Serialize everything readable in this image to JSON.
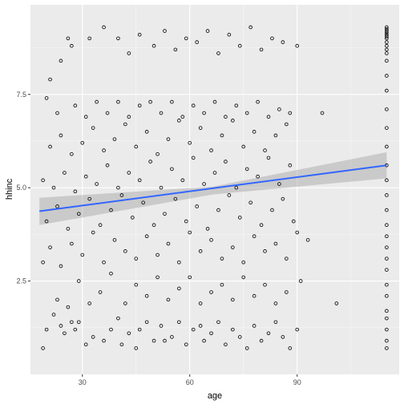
{
  "chart_data": {
    "type": "scatter",
    "title": "",
    "xlabel": "age",
    "ylabel": "hhinc",
    "xlim": [
      15.5,
      118.5
    ],
    "ylim": [
      0.0,
      9.9
    ],
    "x_ticks": [
      30,
      60,
      90
    ],
    "x_tick_labels": [
      "30",
      "60",
      "90"
    ],
    "y_ticks": [
      2.5,
      5.0,
      7.5
    ],
    "y_tick_labels": [
      "2.5",
      "5.0",
      "7.5"
    ],
    "grid": true,
    "legend": "none",
    "points": [
      [
        19,
        0.7
      ],
      [
        20,
        1.2
      ],
      [
        22,
        1.6
      ],
      [
        24,
        1.3
      ],
      [
        25,
        1.1
      ],
      [
        27,
        1.4
      ],
      [
        28,
        1.2
      ],
      [
        29,
        1.4
      ],
      [
        31,
        0.8
      ],
      [
        33,
        1.0
      ],
      [
        36,
        0.9
      ],
      [
        38,
        1.2
      ],
      [
        40,
        1.5
      ],
      [
        41,
        0.8
      ],
      [
        43,
        1.1
      ],
      [
        45,
        0.7
      ],
      [
        46,
        1.2
      ],
      [
        48,
        1.4
      ],
      [
        50,
        0.9
      ],
      [
        52,
        1.3
      ],
      [
        53,
        0.9
      ],
      [
        55,
        1.0
      ],
      [
        57,
        1.4
      ],
      [
        59,
        0.8
      ],
      [
        61,
        1.2
      ],
      [
        63,
        1.3
      ],
      [
        64,
        0.9
      ],
      [
        66,
        1.1
      ],
      [
        68,
        1.4
      ],
      [
        70,
        0.8
      ],
      [
        72,
        1.2
      ],
      [
        74,
        1.0
      ],
      [
        76,
        0.7
      ],
      [
        78,
        1.3
      ],
      [
        80,
        0.9
      ],
      [
        82,
        1.1
      ],
      [
        84,
        1.4
      ],
      [
        86,
        1.0
      ],
      [
        88,
        0.7
      ],
      [
        90,
        1.2
      ],
      [
        23,
        2.0
      ],
      [
        26,
        1.8
      ],
      [
        29,
        2.5
      ],
      [
        32,
        1.9
      ],
      [
        35,
        2.2
      ],
      [
        38,
        2.7
      ],
      [
        42,
        1.9
      ],
      [
        45,
        2.4
      ],
      [
        48,
        2.1
      ],
      [
        51,
        2.6
      ],
      [
        54,
        2.0
      ],
      [
        57,
        2.3
      ],
      [
        60,
        2.6
      ],
      [
        63,
        1.9
      ],
      [
        66,
        2.2
      ],
      [
        69,
        2.4
      ],
      [
        72,
        2.0
      ],
      [
        75,
        2.6
      ],
      [
        78,
        2.1
      ],
      [
        81,
        2.4
      ],
      [
        84,
        1.9
      ],
      [
        87,
        2.2
      ],
      [
        91,
        2.5
      ],
      [
        101,
        1.9
      ],
      [
        19,
        3.0
      ],
      [
        21,
        3.4
      ],
      [
        24,
        2.9
      ],
      [
        27,
        3.5
      ],
      [
        30,
        3.2
      ],
      [
        33,
        3.8
      ],
      [
        36,
        3.0
      ],
      [
        39,
        3.6
      ],
      [
        42,
        3.3
      ],
      [
        45,
        3.1
      ],
      [
        48,
        3.7
      ],
      [
        51,
        3.2
      ],
      [
        54,
        3.5
      ],
      [
        57,
        3.0
      ],
      [
        60,
        3.8
      ],
      [
        63,
        3.3
      ],
      [
        66,
        3.6
      ],
      [
        69,
        3.1
      ],
      [
        72,
        3.4
      ],
      [
        75,
        3.0
      ],
      [
        78,
        3.7
      ],
      [
        81,
        3.3
      ],
      [
        84,
        3.5
      ],
      [
        87,
        3.1
      ],
      [
        90,
        3.8
      ],
      [
        93,
        3.6
      ],
      [
        20,
        4.1
      ],
      [
        23,
        4.5
      ],
      [
        26,
        3.9
      ],
      [
        29,
        4.3
      ],
      [
        32,
        4.7
      ],
      [
        35,
        4.0
      ],
      [
        38,
        4.4
      ],
      [
        41,
        4.8
      ],
      [
        44,
        4.2
      ],
      [
        47,
        4.6
      ],
      [
        50,
        4.0
      ],
      [
        53,
        4.3
      ],
      [
        56,
        4.7
      ],
      [
        59,
        4.1
      ],
      [
        62,
        4.5
      ],
      [
        65,
        3.9
      ],
      [
        68,
        4.4
      ],
      [
        71,
        4.8
      ],
      [
        74,
        4.2
      ],
      [
        77,
        4.6
      ],
      [
        80,
        4.0
      ],
      [
        83,
        4.4
      ],
      [
        86,
        4.7
      ],
      [
        89,
        4.1
      ],
      [
        19,
        5.2
      ],
      [
        22,
        5.0
      ],
      [
        25,
        5.4
      ],
      [
        28,
        4.9
      ],
      [
        31,
        5.3
      ],
      [
        34,
        5.1
      ],
      [
        37,
        5.6
      ],
      [
        40,
        5.0
      ],
      [
        43,
        5.4
      ],
      [
        46,
        5.2
      ],
      [
        49,
        5.7
      ],
      [
        52,
        5.0
      ],
      [
        55,
        5.5
      ],
      [
        58,
        5.2
      ],
      [
        61,
        5.8
      ],
      [
        64,
        5.1
      ],
      [
        67,
        5.4
      ],
      [
        70,
        5.7
      ],
      [
        73,
        5.0
      ],
      [
        76,
        5.5
      ],
      [
        79,
        5.3
      ],
      [
        82,
        5.8
      ],
      [
        85,
        5.1
      ],
      [
        88,
        5.6
      ],
      [
        21,
        6.1
      ],
      [
        24,
        6.4
      ],
      [
        27,
        5.9
      ],
      [
        30,
        6.2
      ],
      [
        33,
        6.6
      ],
      [
        36,
        6.0
      ],
      [
        39,
        6.3
      ],
      [
        42,
        6.7
      ],
      [
        45,
        6.1
      ],
      [
        48,
        6.5
      ],
      [
        51,
        5.9
      ],
      [
        54,
        6.3
      ],
      [
        57,
        6.8
      ],
      [
        60,
        6.2
      ],
      [
        63,
        6.6
      ],
      [
        66,
        6.0
      ],
      [
        69,
        6.4
      ],
      [
        72,
        6.8
      ],
      [
        75,
        6.1
      ],
      [
        78,
        6.5
      ],
      [
        81,
        6.0
      ],
      [
        84,
        6.4
      ],
      [
        87,
        6.7
      ],
      [
        20,
        7.4
      ],
      [
        23,
        7.0
      ],
      [
        28,
        7.2
      ],
      [
        31,
        6.9
      ],
      [
        34,
        7.3
      ],
      [
        37,
        7.0
      ],
      [
        40,
        7.3
      ],
      [
        43,
        6.9
      ],
      [
        46,
        7.2
      ],
      [
        49,
        7.3
      ],
      [
        52,
        7.0
      ],
      [
        55,
        7.3
      ],
      [
        58,
        6.9
      ],
      [
        61,
        7.2
      ],
      [
        64,
        7.0
      ],
      [
        67,
        7.3
      ],
      [
        70,
        6.9
      ],
      [
        73,
        7.2
      ],
      [
        76,
        7.0
      ],
      [
        79,
        7.3
      ],
      [
        82,
        6.9
      ],
      [
        85,
        7.1
      ],
      [
        88,
        7.0
      ],
      [
        97,
        7.0
      ],
      [
        21,
        7.9
      ],
      [
        24,
        8.4
      ],
      [
        27,
        8.8
      ],
      [
        26,
        9.0
      ],
      [
        32,
        9.0
      ],
      [
        36,
        9.3
      ],
      [
        40,
        9.0
      ],
      [
        43,
        8.6
      ],
      [
        46,
        9.1
      ],
      [
        50,
        8.8
      ],
      [
        53,
        9.2
      ],
      [
        56,
        8.7
      ],
      [
        59,
        9.0
      ],
      [
        62,
        8.9
      ],
      [
        65,
        9.2
      ],
      [
        68,
        8.6
      ],
      [
        71,
        9.1
      ],
      [
        74,
        8.8
      ],
      [
        77,
        9.3
      ],
      [
        80,
        8.7
      ],
      [
        83,
        9.0
      ],
      [
        86,
        8.9
      ],
      [
        90,
        8.8
      ]
    ],
    "dense_column": {
      "x": 115,
      "y": [
        0.7,
        0.9,
        1.2,
        1.5,
        1.7,
        2.1,
        2.4,
        2.8,
        3.1,
        3.4,
        3.7,
        4.0,
        4.4,
        4.8,
        5.2,
        5.6,
        6.1,
        6.6,
        7.1,
        7.6,
        8.0,
        8.4,
        8.6,
        8.7,
        8.8,
        8.9,
        9.0,
        9.05,
        9.1,
        9.15,
        9.2,
        9.25,
        9.3
      ]
    },
    "fit_line": {
      "x": [
        18,
        115
      ],
      "y": [
        4.37,
        5.6
      ],
      "ci_lower": [
        4.0,
        5.25
      ],
      "ci_upper": [
        4.73,
        5.95
      ],
      "ci_mid_lower": 4.82,
      "ci_mid_upper": 5.03,
      "color": "#3366ff"
    },
    "colors": {
      "panel": "#ebebeb",
      "grid_major": "#ffffff",
      "ribbon": "#999999",
      "point_stroke": "#000000"
    }
  }
}
